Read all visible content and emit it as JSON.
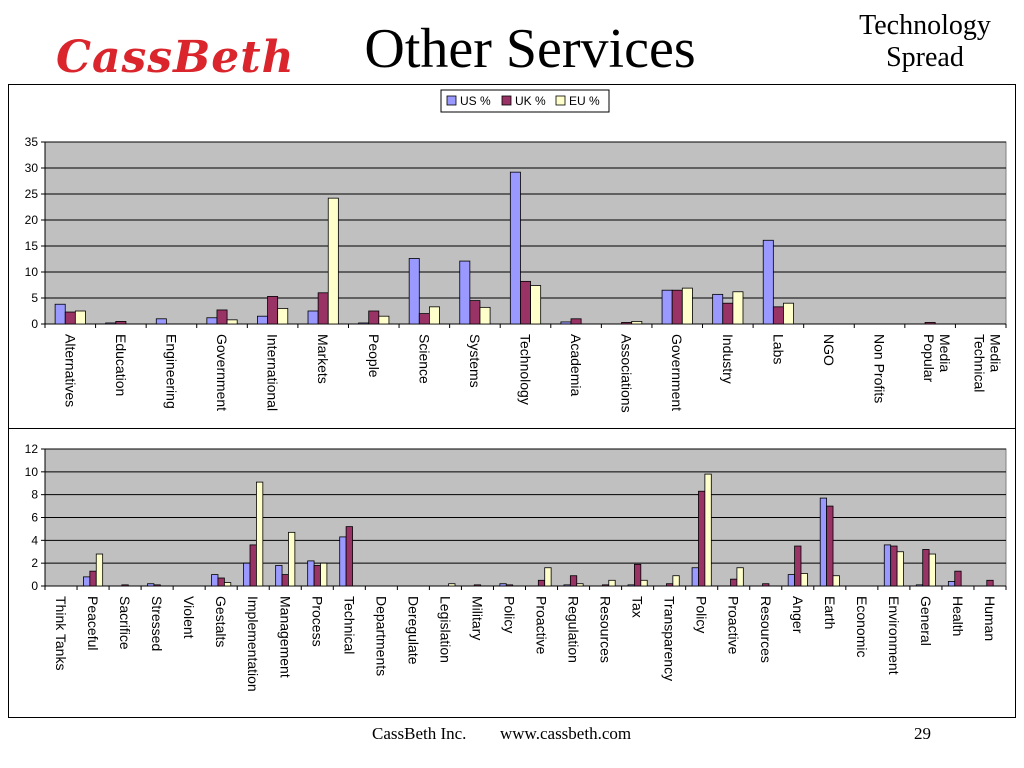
{
  "header": {
    "logo_text": "CassBeth",
    "title": "Other Services",
    "subtitle_line1": "Technology",
    "subtitle_line2": "Spread"
  },
  "footer": {
    "company": "CassBeth Inc.",
    "url": "www.cassbeth.com",
    "page_number": "29"
  },
  "colors": {
    "us": "#9999ff",
    "uk": "#993366",
    "eu": "#ffffcc",
    "plot_bg": "#c0c0c0",
    "grid": "#000000"
  },
  "chart_data": [
    {
      "type": "bar",
      "legend": [
        "US %",
        "UK %",
        "EU %"
      ],
      "legend_position": "top-center",
      "grid": true,
      "ylim": [
        0,
        35
      ],
      "yticks": [
        0,
        5,
        10,
        15,
        20,
        25,
        30,
        35
      ],
      "categories": [
        "Alternatives",
        "Education",
        "Engineering",
        "Government",
        "International",
        "Markets",
        "People",
        "Science",
        "Systems",
        "Technology",
        "Academia",
        "Associations",
        "Government",
        "Industry",
        "Labs",
        "NGO",
        "Non Profits",
        "Popular Media",
        "Technical Media"
      ],
      "series": [
        {
          "name": "US %",
          "values": [
            3.8,
            0.2,
            1.0,
            1.2,
            1.5,
            2.5,
            0.2,
            12.6,
            12.1,
            29.2,
            0.4,
            0.0,
            6.5,
            5.7,
            16.1,
            0,
            0,
            0,
            0
          ]
        },
        {
          "name": "UK %",
          "values": [
            2.3,
            0.5,
            0.0,
            2.7,
            5.3,
            6.0,
            2.5,
            2.0,
            4.5,
            8.2,
            1.0,
            0.3,
            6.5,
            4.0,
            3.3,
            0,
            0,
            0.3,
            0
          ]
        },
        {
          "name": "EU %",
          "values": [
            2.5,
            0.0,
            0.0,
            0.8,
            3.0,
            24.2,
            1.5,
            3.3,
            3.2,
            7.4,
            0.0,
            0.5,
            6.9,
            6.2,
            4.0,
            0,
            0,
            0,
            0
          ]
        }
      ]
    },
    {
      "type": "bar",
      "grid": true,
      "ylim": [
        0,
        12
      ],
      "yticks": [
        0,
        2,
        4,
        6,
        8,
        10,
        12
      ],
      "categories": [
        "Think Tanks",
        "Peaceful",
        "Sacrifice",
        "Stressed",
        "Violent",
        "Gestalts",
        "Implementation",
        "Management",
        "Process",
        "Technical",
        "Departments",
        "Deregulate",
        "Legislation",
        "Military",
        "Policy",
        "Proactive",
        "Regulation",
        "Resources",
        "Tax",
        "Transparency",
        "Policy",
        "Proactive",
        "Resources",
        "Anger",
        "Earth",
        "Economic",
        "Environment",
        "General",
        "Health",
        "Human"
      ],
      "series": [
        {
          "name": "US %",
          "values": [
            0,
            0.8,
            0.0,
            0.2,
            0,
            1.0,
            2.0,
            1.8,
            2.2,
            4.3,
            0,
            0,
            0,
            0,
            0.2,
            0,
            0.1,
            0,
            0.1,
            0,
            1.6,
            0,
            0,
            1.0,
            7.7,
            0,
            3.6,
            0.1,
            0.4,
            0
          ]
        },
        {
          "name": "UK %",
          "values": [
            0,
            1.3,
            0.1,
            0.1,
            0,
            0.7,
            3.6,
            1.0,
            1.8,
            5.2,
            0,
            0,
            0,
            0.1,
            0.1,
            0.5,
            0.9,
            0.1,
            1.9,
            0.2,
            8.3,
            0.6,
            0.2,
            3.5,
            7.0,
            0,
            3.5,
            3.2,
            1.3,
            0.5
          ]
        },
        {
          "name": "EU %",
          "values": [
            0,
            2.8,
            0.0,
            0.0,
            0,
            0.3,
            9.1,
            4.7,
            2.0,
            0,
            0,
            0,
            0.2,
            0,
            0,
            1.6,
            0.2,
            0.5,
            0.5,
            0.9,
            9.8,
            1.6,
            0,
            1.1,
            0.9,
            0,
            3.0,
            2.8,
            0,
            0
          ]
        }
      ]
    }
  ]
}
